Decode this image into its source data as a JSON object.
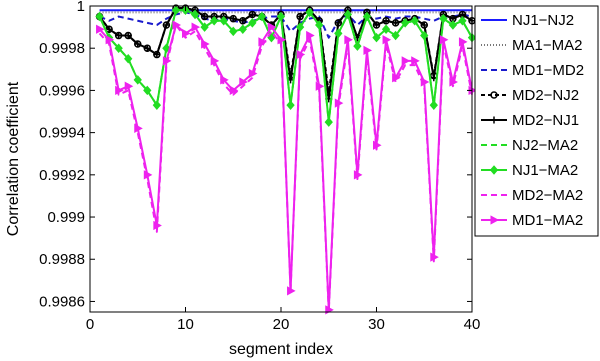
{
  "chart_data": {
    "type": "line",
    "title": "",
    "xlabel": "segment index",
    "ylabel": "Correlation coefficient",
    "xlim": [
      0,
      40
    ],
    "ylim": [
      0.99855,
      1.0
    ],
    "x_ticks": [
      0,
      10,
      20,
      30,
      40
    ],
    "x_tick_labels": [
      "0",
      "10",
      "20",
      "30",
      "40"
    ],
    "y_ticks": [
      0.9986,
      0.9988,
      0.999,
      0.9992,
      0.9994,
      0.9996,
      0.9998,
      1.0
    ],
    "y_tick_labels": [
      "0.9986",
      "0.9988",
      "0.999",
      "0.9992",
      "0.9994",
      "0.9996",
      "0.9998",
      "1"
    ],
    "grid": false,
    "legend_position": "outside-right",
    "x": [
      1,
      2,
      3,
      4,
      5,
      6,
      7,
      8,
      9,
      10,
      11,
      12,
      13,
      14,
      15,
      16,
      17,
      18,
      19,
      20,
      21,
      22,
      23,
      24,
      25,
      26,
      27,
      28,
      29,
      30,
      31,
      32,
      33,
      34,
      35,
      36,
      37,
      38,
      39,
      40
    ],
    "series": [
      {
        "name": "NJ1−NJ2",
        "color": "#1a1aff",
        "dash": "",
        "marker": "none",
        "values": [
          0.99998,
          0.99998,
          0.99998,
          0.99998,
          0.99998,
          0.99998,
          0.99998,
          0.99998,
          0.99998,
          0.99998,
          0.99998,
          0.99998,
          0.99998,
          0.99998,
          0.99998,
          0.99998,
          0.99998,
          0.99998,
          0.99998,
          0.99998,
          0.99998,
          0.99998,
          0.99998,
          0.99998,
          0.99998,
          0.99998,
          0.99998,
          0.99998,
          0.99998,
          0.99998,
          0.99998,
          0.99998,
          0.99998,
          0.99998,
          0.99998,
          0.99998,
          0.99998,
          0.99998,
          0.99998,
          0.99998
        ]
      },
      {
        "name": "MA1−MA2",
        "color": "#777777",
        "dash": "1,2",
        "marker": "none",
        "values": [
          0.99997,
          0.99997,
          0.99997,
          0.99997,
          0.99997,
          0.99997,
          0.99997,
          0.99997,
          0.99997,
          0.99997,
          0.99997,
          0.99997,
          0.99997,
          0.99997,
          0.99997,
          0.99997,
          0.99997,
          0.99997,
          0.99997,
          0.99997,
          0.99997,
          0.99997,
          0.99997,
          0.99997,
          0.99997,
          0.99997,
          0.99997,
          0.99997,
          0.99997,
          0.99997,
          0.99997,
          0.99997,
          0.99997,
          0.99997,
          0.99997,
          0.99997,
          0.99997,
          0.99997,
          0.99997,
          0.99997
        ]
      },
      {
        "name": "MD1−MD2",
        "color": "#1a1acc",
        "dash": "6,4",
        "marker": "none",
        "values": [
          0.99995,
          0.99993,
          0.99995,
          0.99994,
          0.99993,
          0.99992,
          0.99991,
          0.99994,
          0.99996,
          0.99997,
          0.99996,
          0.99994,
          0.99993,
          0.99994,
          0.99993,
          0.99992,
          0.99993,
          0.99994,
          0.99995,
          0.99995,
          0.99988,
          0.99992,
          0.99994,
          0.99995,
          0.99985,
          0.99993,
          0.99996,
          0.99991,
          0.99995,
          0.99994,
          0.99995,
          0.99994,
          0.99995,
          0.99995,
          0.99994,
          0.99993,
          0.99995,
          0.99995,
          0.99996,
          0.99995
        ]
      },
      {
        "name": "MD2−NJ2",
        "color": "#000000",
        "dash": "4,3",
        "marker": "circle",
        "values": [
          0.99995,
          0.99989,
          0.99986,
          0.99986,
          0.99982,
          0.9998,
          0.99977,
          0.99991,
          0.99999,
          0.99999,
          0.99998,
          0.99995,
          0.99995,
          0.99995,
          0.99994,
          0.99993,
          0.99996,
          0.99995,
          0.99991,
          0.99996,
          0.99967,
          0.99995,
          0.99998,
          0.99993,
          0.99959,
          0.99992,
          0.99998,
          0.99985,
          0.99997,
          0.99991,
          0.99993,
          0.99992,
          0.99993,
          0.99994,
          0.99991,
          0.99967,
          0.99996,
          0.99994,
          0.99996,
          0.99993
        ]
      },
      {
        "name": "MD2−NJ1",
        "color": "#000000",
        "dash": "",
        "marker": "plus",
        "values": [
          0.99995,
          0.99989,
          0.99986,
          0.99986,
          0.99982,
          0.9998,
          0.99977,
          0.99991,
          0.99999,
          0.99999,
          0.99998,
          0.99995,
          0.99995,
          0.99995,
          0.99994,
          0.99993,
          0.99996,
          0.99995,
          0.99991,
          0.99996,
          0.99965,
          0.99995,
          0.99998,
          0.99993,
          0.99956,
          0.99992,
          0.99998,
          0.99985,
          0.99997,
          0.99991,
          0.99993,
          0.99992,
          0.99993,
          0.99994,
          0.99991,
          0.99966,
          0.99996,
          0.99994,
          0.99996,
          0.99993
        ]
      },
      {
        "name": "NJ2−MA2",
        "color": "#22dd22",
        "dash": "6,4",
        "marker": "none",
        "values": [
          0.99995,
          0.99985,
          0.9998,
          0.99975,
          0.99965,
          0.9996,
          0.99953,
          0.9998,
          0.99998,
          0.99998,
          0.99996,
          0.9999,
          0.99993,
          0.99993,
          0.99988,
          0.99989,
          0.99992,
          0.99995,
          0.99985,
          0.99995,
          0.99953,
          0.9999,
          0.99997,
          0.99991,
          0.99945,
          0.99987,
          0.99996,
          0.99981,
          0.99995,
          0.99985,
          0.99989,
          0.99986,
          0.99992,
          0.99993,
          0.99986,
          0.99953,
          0.99994,
          0.99991,
          0.99993,
          0.99985
        ]
      },
      {
        "name": "NJ1−MA2",
        "color": "#22dd22",
        "dash": "",
        "marker": "diamond",
        "values": [
          0.99995,
          0.99985,
          0.9998,
          0.99975,
          0.99965,
          0.9996,
          0.99953,
          0.9998,
          0.99998,
          0.99998,
          0.99996,
          0.9999,
          0.99993,
          0.99993,
          0.99988,
          0.99989,
          0.99992,
          0.99995,
          0.99985,
          0.99995,
          0.99953,
          0.9999,
          0.99997,
          0.99991,
          0.99945,
          0.99987,
          0.99996,
          0.99981,
          0.99995,
          0.99985,
          0.99989,
          0.99986,
          0.99992,
          0.99993,
          0.99986,
          0.99953,
          0.99994,
          0.99991,
          0.99993,
          0.99985
        ]
      },
      {
        "name": "MD2−MA2",
        "color": "#ee22ee",
        "dash": "6,4",
        "marker": "none",
        "values": [
          0.99987,
          0.99982,
          0.99958,
          0.9996,
          0.9994,
          0.99918,
          0.99893,
          0.99972,
          0.99991,
          0.99985,
          0.99988,
          0.9998,
          0.99972,
          0.99963,
          0.99958,
          0.99962,
          0.99966,
          0.99981,
          0.99988,
          0.99982,
          0.99865,
          0.99975,
          0.99984,
          0.9996,
          0.99855,
          0.99952,
          0.99982,
          0.99918,
          0.99977,
          0.99932,
          0.99982,
          0.99964,
          0.99972,
          0.99972,
          0.99962,
          0.99879,
          0.99982,
          0.99962,
          0.99981,
          0.99958
        ]
      },
      {
        "name": "MD1−MA2",
        "color": "#ee22ee",
        "dash": "",
        "marker": "triangle-right",
        "values": [
          0.99989,
          0.99984,
          0.9996,
          0.99962,
          0.99942,
          0.9992,
          0.99896,
          0.99974,
          0.99991,
          0.99987,
          0.9999,
          0.99982,
          0.99974,
          0.99965,
          0.9996,
          0.99964,
          0.99968,
          0.99983,
          0.9999,
          0.99984,
          0.99865,
          0.99977,
          0.99986,
          0.99962,
          0.99856,
          0.99954,
          0.99984,
          0.9992,
          0.99979,
          0.99934,
          0.99984,
          0.99966,
          0.99974,
          0.99974,
          0.99964,
          0.99881,
          0.99984,
          0.99964,
          0.99983,
          0.9996
        ]
      }
    ]
  }
}
